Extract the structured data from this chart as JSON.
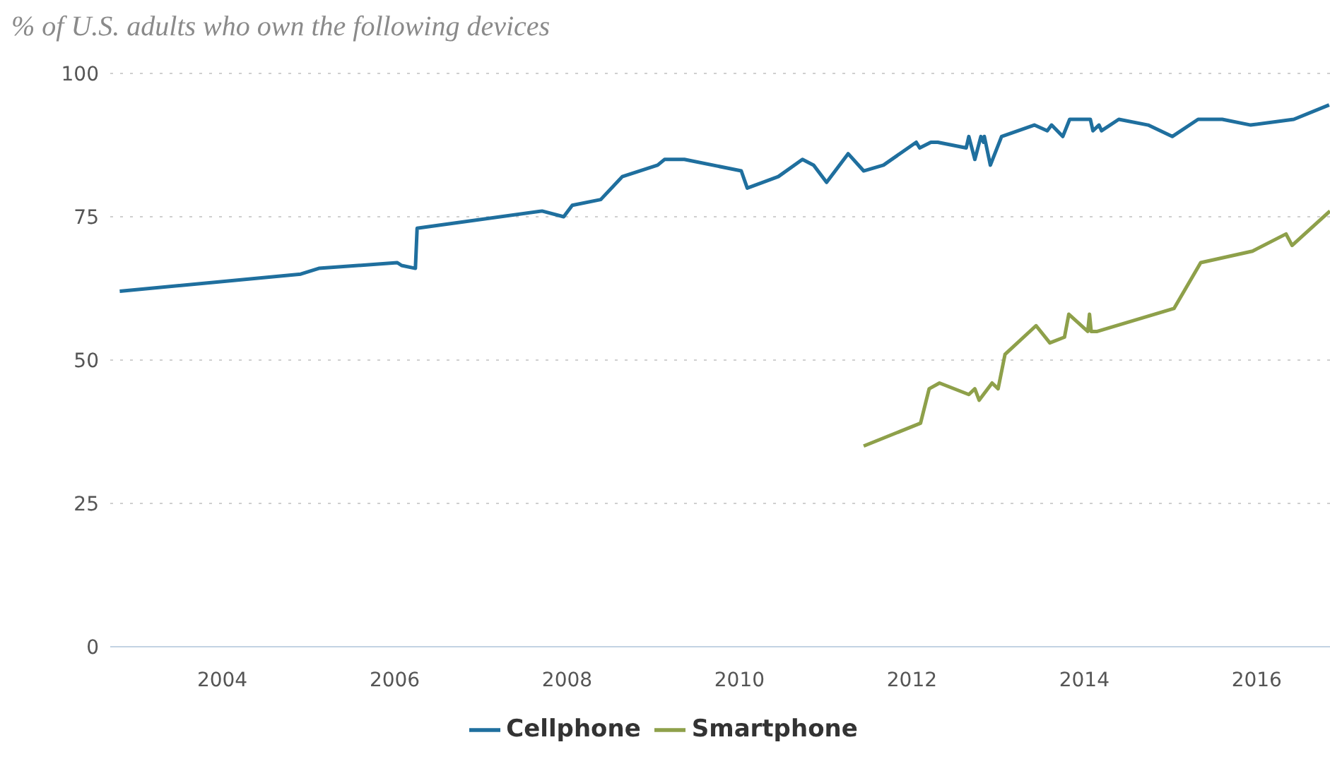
{
  "chart_data": {
    "type": "line",
    "title": "% of U.S. adults who own the following devices",
    "xlim": [
      2002.7,
      2016.85
    ],
    "xticks": [
      2004,
      2006,
      2008,
      2010,
      2012,
      2014,
      2016
    ],
    "ylim": [
      0,
      100
    ],
    "yticks": [
      0,
      25,
      50,
      75,
      100
    ],
    "grid": "y",
    "legend": "bottom",
    "marker": "none",
    "line_style": "solid",
    "series": [
      {
        "name": "Cellphone",
        "color": "#1f6f9e",
        "x": [
          2002.81,
          2004.91,
          2005.12,
          2006.03,
          2006.08,
          2006.24,
          2006.26,
          2007.71,
          2007.96,
          2008.06,
          2008.39,
          2008.64,
          2009.05,
          2009.13,
          2009.36,
          2010.02,
          2010.09,
          2010.45,
          2010.73,
          2010.86,
          2011.01,
          2011.26,
          2011.44,
          2011.67,
          2012.05,
          2012.09,
          2012.22,
          2012.3,
          2012.63,
          2012.66,
          2012.73,
          2012.8,
          2012.83,
          2012.84,
          2012.91,
          2013.04,
          2013.42,
          2013.57,
          2013.62,
          2013.75,
          2013.83,
          2014.07,
          2014.1,
          2014.17,
          2014.2,
          2014.4,
          2014.74,
          2015.02,
          2015.32,
          2015.6,
          2015.93,
          2016.43,
          2016.84
        ],
        "values": [
          62,
          65,
          66,
          67,
          66.5,
          66,
          73,
          76,
          75,
          77,
          78,
          82,
          84,
          85,
          85,
          83,
          80,
          82,
          85,
          84,
          81,
          86,
          83,
          84,
          88,
          87,
          88,
          88,
          87,
          89,
          85,
          89,
          88,
          89,
          84,
          89,
          91,
          90,
          91,
          89,
          92,
          92,
          90,
          91,
          90,
          92,
          91,
          89,
          92,
          92,
          91,
          92,
          94.5
        ]
      },
      {
        "name": "Smartphone",
        "color": "#8ea04a",
        "x": [
          2011.44,
          2012.1,
          2012.2,
          2012.32,
          2012.66,
          2012.73,
          2012.78,
          2012.93,
          2013.0,
          2013.08,
          2013.44,
          2013.6,
          2013.77,
          2013.82,
          2014.04,
          2014.06,
          2014.08,
          2014.15,
          2015.04,
          2015.35,
          2015.95,
          2016.34,
          2016.41,
          2016.85
        ],
        "values": [
          35,
          39,
          45,
          46,
          44,
          45,
          43,
          46,
          45,
          51,
          56,
          53,
          54,
          58,
          55,
          58,
          55,
          55,
          59,
          67,
          69,
          72,
          70,
          76
        ]
      }
    ]
  }
}
